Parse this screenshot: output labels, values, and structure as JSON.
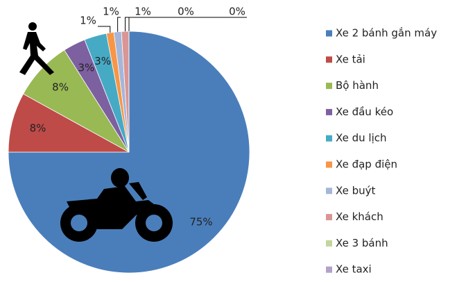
{
  "chart_data": {
    "type": "pie",
    "categories": [
      "Xe 2 bánh gắn máy",
      "Xe tải",
      "Bộ hành",
      "Xe đầu kéo",
      "Xe du lịch",
      "Xe đạp điện",
      "Xe buýt",
      "Xe khách",
      "Xe 3 bánh",
      "Xe taxi"
    ],
    "values": [
      75,
      8,
      8,
      3,
      3,
      1,
      1,
      1,
      0,
      0
    ],
    "value_labels": [
      "75%",
      "8%",
      "8%",
      "3%",
      "3%",
      "1%",
      "1%",
      "1%",
      "0%",
      "0%"
    ],
    "colors": [
      "#4a7ebb",
      "#be4b48",
      "#98b954",
      "#7d60a0",
      "#46aac5",
      "#f79646",
      "#a5b6d9",
      "#d99694",
      "#c3d69b",
      "#b3a2c7"
    ],
    "legend": "right"
  }
}
